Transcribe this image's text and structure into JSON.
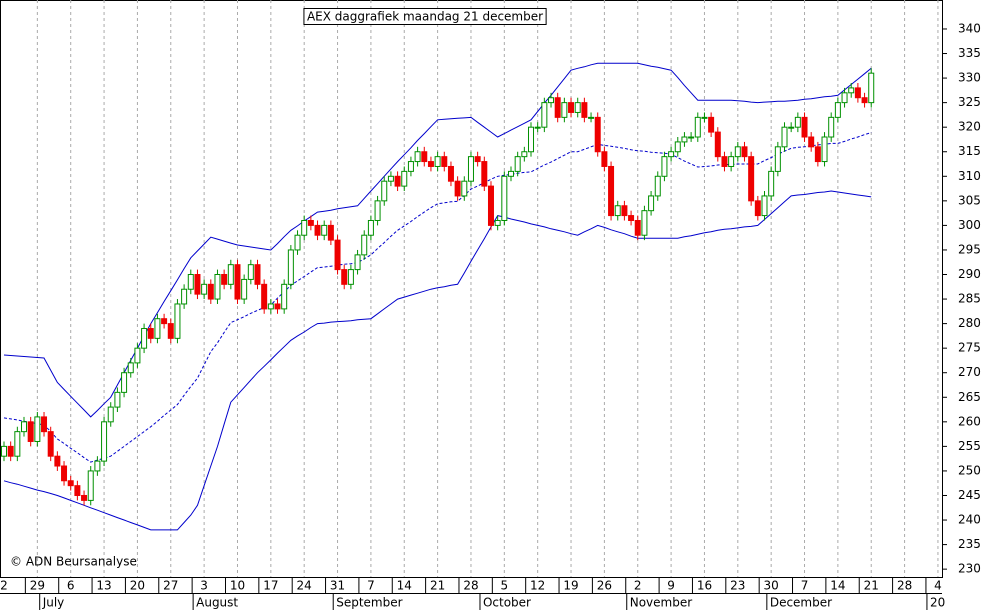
{
  "chart_data": {
    "type": "candlestick",
    "title": "AEX daggrafiek maandag 21 december",
    "copyright": "© ADN Beursanalyse",
    "categories": [
      "2",
      null,
      null,
      null,
      null,
      "29",
      null,
      null,
      null,
      null,
      "6",
      null,
      null,
      null,
      null,
      "13",
      null,
      null,
      null,
      null,
      "20",
      null,
      null,
      null,
      null,
      "27",
      null,
      null,
      null,
      null,
      "3",
      null,
      null,
      null,
      null,
      "10",
      null,
      null,
      null,
      null,
      "17",
      null,
      null,
      null,
      null,
      "24",
      null,
      null,
      null,
      null,
      "31",
      null,
      null,
      null,
      null,
      "7",
      null,
      null,
      null,
      null,
      "14",
      null,
      null,
      null,
      null,
      "21",
      null,
      null,
      null,
      null,
      "28",
      null,
      null,
      null,
      null,
      "5",
      null,
      null,
      null,
      null,
      "12",
      null,
      null,
      null,
      null,
      "19",
      null,
      null,
      null,
      null,
      "26",
      null,
      null,
      null,
      null,
      "2",
      null,
      null,
      null,
      null,
      "9",
      null,
      null,
      null,
      null,
      "16",
      null,
      null,
      null,
      null,
      "23",
      null,
      null,
      null,
      null,
      "30",
      null,
      null,
      null,
      null,
      "7",
      null,
      null,
      null,
      null,
      "14",
      null,
      null,
      null,
      null,
      "21",
      null,
      null,
      null,
      null,
      "28",
      null,
      null,
      null,
      null,
      "4"
    ],
    "months": [
      "July",
      "August",
      "September",
      "October",
      "November",
      "December",
      "20"
    ],
    "open": [
      253,
      255,
      253,
      258,
      260,
      256,
      261,
      258,
      253,
      251,
      248,
      247,
      245,
      244,
      250,
      252,
      260,
      263,
      266,
      270,
      272,
      275,
      279,
      277,
      281,
      280,
      277,
      284,
      287,
      290,
      286,
      288,
      285,
      290,
      288,
      292,
      285,
      289,
      292,
      288,
      283,
      284,
      283,
      288,
      295,
      298,
      301,
      300,
      298,
      300,
      297,
      291,
      288,
      291,
      294,
      298,
      301,
      305,
      309,
      310,
      308,
      311,
      313,
      315,
      313,
      312,
      314,
      312,
      309,
      306,
      309,
      314,
      313,
      308,
      300,
      301,
      310,
      311,
      314,
      315,
      320,
      320,
      325,
      326,
      322,
      325,
      323,
      325,
      322,
      322,
      315,
      312,
      302,
      304,
      302,
      301,
      298,
      303,
      306,
      310,
      314,
      315,
      317,
      318,
      318,
      322,
      322,
      319,
      314,
      312,
      314,
      316,
      314,
      305,
      302,
      306,
      311,
      316,
      320,
      320,
      322,
      318,
      316,
      313,
      318,
      322,
      325,
      327,
      328,
      326,
      325,
      null,
      null,
      null,
      null,
      null,
      null,
      null,
      null,
      null,
      null
    ],
    "high": [
      256,
      256,
      259,
      261,
      261,
      262,
      262,
      259,
      254,
      252,
      249,
      248,
      246,
      251,
      253,
      261,
      264,
      267,
      271,
      273,
      276,
      280,
      280,
      282,
      282,
      281,
      285,
      288,
      291,
      291,
      289,
      289,
      291,
      291,
      293,
      293,
      290,
      293,
      293,
      289,
      285,
      285,
      289,
      296,
      299,
      302,
      302,
      301,
      301,
      301,
      298,
      292,
      292,
      295,
      299,
      302,
      306,
      310,
      311,
      311,
      312,
      314,
      316,
      316,
      314,
      315,
      315,
      313,
      310,
      310,
      315,
      315,
      314,
      309,
      302,
      311,
      312,
      315,
      316,
      321,
      321,
      326,
      327,
      327,
      326,
      326,
      326,
      326,
      323,
      323,
      316,
      313,
      305,
      305,
      303,
      302,
      304,
      307,
      311,
      315,
      316,
      318,
      319,
      319,
      323,
      323,
      323,
      320,
      315,
      315,
      317,
      317,
      315,
      306,
      307,
      312,
      317,
      321,
      321,
      323,
      323,
      319,
      317,
      319,
      323,
      326,
      328,
      329,
      329,
      327,
      332,
      null,
      null,
      null,
      null,
      null,
      null,
      null,
      null,
      null,
      null
    ],
    "low": [
      252,
      252,
      252,
      257,
      255,
      255,
      257,
      252,
      250,
      247,
      246,
      244,
      243,
      243,
      249,
      251,
      259,
      262,
      265,
      269,
      271,
      274,
      276,
      276,
      279,
      276,
      276,
      283,
      286,
      285,
      285,
      284,
      284,
      287,
      287,
      284,
      284,
      288,
      287,
      282,
      282,
      282,
      282,
      287,
      294,
      297,
      299,
      297,
      297,
      296,
      290,
      287,
      287,
      290,
      293,
      297,
      300,
      304,
      308,
      307,
      307,
      310,
      312,
      312,
      311,
      311,
      311,
      308,
      305,
      305,
      308,
      312,
      307,
      299,
      299,
      300,
      309,
      310,
      313,
      314,
      319,
      319,
      324,
      321,
      321,
      322,
      322,
      321,
      321,
      314,
      311,
      301,
      301,
      301,
      300,
      297,
      297,
      302,
      305,
      309,
      313,
      314,
      316,
      317,
      317,
      321,
      318,
      313,
      311,
      311,
      313,
      313,
      304,
      301,
      301,
      305,
      310,
      315,
      319,
      319,
      317,
      315,
      312,
      312,
      317,
      321,
      324,
      326,
      325,
      324,
      324,
      null,
      null,
      null,
      null,
      null,
      null,
      null,
      null,
      null,
      null
    ],
    "close": [
      255,
      253,
      258,
      260,
      256,
      261,
      258,
      253,
      251,
      248,
      247,
      245,
      244,
      250,
      252,
      260,
      263,
      266,
      270,
      272,
      275,
      279,
      277,
      281,
      280,
      277,
      284,
      287,
      290,
      286,
      288,
      285,
      290,
      288,
      292,
      285,
      289,
      292,
      288,
      283,
      284,
      283,
      288,
      295,
      298,
      301,
      300,
      298,
      300,
      297,
      291,
      288,
      291,
      294,
      298,
      301,
      305,
      309,
      310,
      308,
      311,
      313,
      315,
      313,
      312,
      314,
      312,
      309,
      306,
      309,
      314,
      313,
      308,
      300,
      301,
      310,
      311,
      314,
      315,
      320,
      320,
      325,
      326,
      322,
      325,
      323,
      325,
      322,
      322,
      315,
      312,
      302,
      304,
      302,
      301,
      298,
      303,
      306,
      310,
      314,
      315,
      317,
      318,
      318,
      322,
      322,
      319,
      314,
      312,
      314,
      316,
      314,
      305,
      302,
      306,
      311,
      316,
      320,
      320,
      322,
      318,
      316,
      313,
      318,
      322,
      325,
      327,
      328,
      326,
      325,
      331,
      null,
      null,
      null,
      null,
      null,
      null,
      null,
      null,
      null,
      null
    ],
    "upper_band": [
      273.6,
      273.5,
      273.4,
      273.3,
      273.2,
      273.1,
      273,
      270.5,
      268,
      266.6,
      265.2,
      263.8,
      262.4,
      261,
      262.3,
      263.7,
      265,
      267.5,
      270,
      272.5,
      275,
      277.5,
      280,
      282.2,
      284.5,
      286.7,
      288.9,
      291.2,
      293.4,
      294.8,
      296.2,
      297.6,
      297.2,
      296.8,
      296.4,
      296,
      295.8,
      295.6,
      295.4,
      295.2,
      295,
      296.3,
      297.7,
      299,
      299.9,
      300.9,
      301.8,
      302.7,
      302.9,
      303.1,
      303.4,
      303.6,
      303.8,
      304,
      305.5,
      307,
      308.5,
      310,
      311.5,
      313,
      314.4,
      315.8,
      317.3,
      318.7,
      320.1,
      321.5,
      321.6,
      321.7,
      321.8,
      321.9,
      322,
      321,
      320,
      319,
      318,
      318.7,
      319.4,
      320.1,
      320.8,
      321.5,
      323.2,
      324.9,
      326.5,
      328.2,
      329.9,
      331.6,
      332,
      332.3,
      332.7,
      333,
      333,
      333,
      333,
      333,
      333,
      333,
      332.7,
      332.4,
      332.2,
      331.9,
      331.6,
      330.1,
      328.5,
      327,
      325.5,
      325.5,
      325.5,
      325.5,
      325.5,
      325.5,
      325.4,
      325.3,
      325.1,
      325,
      325.1,
      325.2,
      325.3,
      325.3,
      325.4,
      325.5,
      325.7,
      325.8,
      326,
      326.2,
      326.3,
      326.5,
      327.6,
      328.7,
      329.8,
      330.9,
      332,
      null,
      null,
      null,
      null,
      null,
      null,
      null,
      null,
      null,
      null
    ],
    "middle_band": [
      260.8,
      260.6,
      260.4,
      260.1,
      259.9,
      259.6,
      259.4,
      258,
      256.5,
      255.6,
      254.6,
      253.7,
      252.7,
      251.8,
      252.2,
      252.6,
      253,
      254,
      255,
      256,
      257,
      258,
      259,
      260.1,
      261.3,
      262.4,
      263.5,
      265.4,
      267.2,
      268.9,
      271.6,
      274.3,
      276.1,
      278.2,
      280.2,
      280.8,
      281.4,
      282.1,
      282.7,
      283.3,
      283.8,
      285.2,
      286.5,
      287.8,
      288.7,
      289.6,
      290.5,
      291.4,
      291.5,
      291.7,
      291.9,
      292.1,
      292.2,
      292.4,
      293.2,
      294,
      295.3,
      296.5,
      297.8,
      299,
      299.9,
      300.8,
      301.8,
      302.7,
      303.6,
      304.4,
      304.6,
      304.8,
      304.9,
      306.1,
      307.4,
      308,
      308.7,
      309.4,
      310,
      310.2,
      310.4,
      310.6,
      310.8,
      310.9,
      311.6,
      312.3,
      312.9,
      313.6,
      314.3,
      315,
      315,
      315.5,
      316,
      316.5,
      316.3,
      316.1,
      315.9,
      315.7,
      315.4,
      315.2,
      315.1,
      314.9,
      314.8,
      314.7,
      314.5,
      313.8,
      313.1,
      312.5,
      311.9,
      312,
      312.1,
      312.3,
      312.4,
      312.4,
      312.5,
      312.5,
      312.5,
      312.5,
      313.2,
      313.8,
      314.5,
      315.1,
      315.7,
      315.9,
      316,
      316.2,
      316.4,
      316.5,
      316.7,
      316.7,
      317.1,
      317.6,
      318,
      318.5,
      318.9,
      null,
      null,
      null,
      null,
      null,
      null,
      null,
      null,
      null,
      null
    ],
    "lower_band": [
      248,
      247.6,
      247.3,
      246.9,
      246.5,
      246.1,
      245.8,
      245.4,
      245,
      244.5,
      244,
      243.5,
      243,
      242.5,
      242,
      241.5,
      241,
      240.5,
      240,
      239.5,
      239,
      238.5,
      238,
      238,
      238,
      238,
      238,
      239.5,
      241,
      243,
      247,
      251,
      255,
      259.5,
      264,
      265.5,
      267,
      268.5,
      270,
      271.3,
      272.6,
      274,
      275.3,
      276.6,
      277.5,
      278.3,
      279.2,
      280,
      280.1,
      280.3,
      280.4,
      280.5,
      280.6,
      280.8,
      280.9,
      281,
      282,
      283,
      284,
      285,
      285.4,
      285.8,
      286.2,
      286.6,
      287,
      287.3,
      287.5,
      287.8,
      288,
      290.3,
      292.7,
      295,
      297.3,
      299.7,
      302,
      301.7,
      301.3,
      301,
      300.7,
      300.3,
      300,
      299.7,
      299.3,
      299,
      298.7,
      298.3,
      298,
      298.7,
      299.3,
      300,
      299.6,
      299.1,
      298.7,
      298.3,
      297.8,
      297.4,
      297.4,
      297.4,
      297.4,
      297.4,
      297.4,
      297.4,
      297.7,
      297.9,
      298.2,
      298.5,
      298.7,
      299,
      299.2,
      299.3,
      299.5,
      299.7,
      299.8,
      300,
      301.2,
      302.4,
      303.6,
      304.8,
      306,
      306.2,
      306.3,
      306.5,
      306.7,
      306.8,
      307,
      306.8,
      306.6,
      306.4,
      306.2,
      306,
      305.8,
      null,
      null,
      null,
      null,
      null,
      null,
      null,
      null,
      null,
      null
    ],
    "up_color": "#009000",
    "down_color": "#ee0000",
    "band_color": "#0000cc",
    "ylim": [
      228.4,
      345.9
    ],
    "yticks": [
      230,
      235,
      240,
      245,
      250,
      255,
      260,
      265,
      270,
      275,
      280,
      285,
      290,
      295,
      300,
      305,
      310,
      315,
      320,
      325,
      330,
      335,
      340
    ],
    "grid": true
  }
}
